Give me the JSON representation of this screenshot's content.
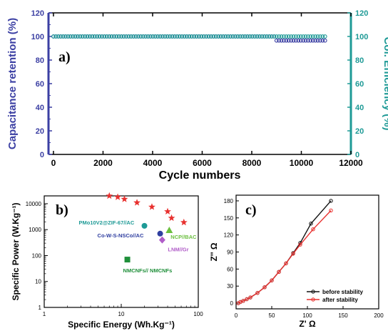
{
  "chart_data": [
    {
      "panel": "a)",
      "type": "scatter",
      "xlabel": "Cycle numbers",
      "ylabel": "Capacitance retention (%)",
      "y2label": "Col. Efficiency (%)",
      "xlim": [
        -200,
        12000
      ],
      "ylim": [
        0,
        120
      ],
      "y2lim": [
        0,
        120
      ],
      "xticks": [
        0,
        2000,
        4000,
        6000,
        8000,
        10000,
        12000
      ],
      "yticks": [
        0,
        20,
        40,
        60,
        80,
        100,
        120
      ],
      "y2ticks": [
        0,
        20,
        40,
        60,
        80,
        100,
        120
      ],
      "series": [
        {
          "axis": "left",
          "color": "#3b3fa3",
          "marker": "circle",
          "segments": [
            {
              "x_start": 0,
              "x_end": 9000,
              "y": 100
            },
            {
              "x_start": 9000,
              "x_end": 11000,
              "y": 96.5
            }
          ]
        },
        {
          "axis": "right",
          "color": "#1e9a96",
          "marker": "circle",
          "segments": [
            {
              "x_start": 0,
              "x_end": 11000,
              "y": 100
            }
          ]
        }
      ]
    },
    {
      "panel": "b)",
      "type": "scatter",
      "xscale": "log",
      "yscale": "log",
      "xlabel": "Specific Energy (Wh.Kg⁻¹)",
      "ylabel": "Specific Power (W.Kg⁻¹)",
      "xlim": [
        1,
        100
      ],
      "ylim": [
        1,
        20000
      ],
      "xticks": [
        1,
        10,
        100
      ],
      "yticks": [
        1,
        10,
        100,
        1000,
        10000
      ],
      "series": [
        {
          "color": "#e8312f",
          "marker": "star",
          "points": [
            [
              7,
              20000
            ],
            [
              9,
              18000
            ],
            [
              11,
              15000
            ],
            [
              16,
              11000
            ],
            [
              25,
              7500
            ],
            [
              40,
              5000
            ],
            [
              45,
              2800
            ],
            [
              65,
              1900
            ]
          ]
        }
      ],
      "annotations": [
        {
          "text": "PMo10V2@ZIF-67//AC",
          "x": 20,
          "y": 1400,
          "color": "#1e9a96",
          "marker": "circle"
        },
        {
          "text": "Co-W-S-NSCo//AC",
          "x": 32,
          "y": 700,
          "color": "#2f3ea0",
          "marker": "circle"
        },
        {
          "text": "NCP//BAC",
          "x": 42,
          "y": 950,
          "color": "#6bbf3f",
          "marker": "triangle"
        },
        {
          "text": "LNM//Gr",
          "x": 34,
          "y": 400,
          "color": "#b05cc8",
          "marker": "diamond"
        },
        {
          "text": "NMCNFs// NMCNFs",
          "x": 12,
          "y": 70,
          "color": "#1f8f3a",
          "marker": "square"
        }
      ]
    },
    {
      "panel": "c)",
      "type": "line",
      "xlabel": "Z' Ω",
      "ylabel": "Z'' Ω",
      "xlim": [
        0,
        200
      ],
      "ylim": [
        -10,
        190
      ],
      "xticks": [
        0,
        50,
        100,
        150,
        200
      ],
      "yticks": [
        0,
        30,
        60,
        90,
        120,
        150,
        180
      ],
      "legend": "bottom-right",
      "series": [
        {
          "name": "before stability",
          "color": "#111111",
          "points": [
            [
              3,
              0
            ],
            [
              6,
              2
            ],
            [
              10,
              4
            ],
            [
              15,
              7
            ],
            [
              20,
              10
            ],
            [
              30,
              18
            ],
            [
              40,
              28
            ],
            [
              50,
              40
            ],
            [
              60,
              55
            ],
            [
              70,
              70
            ],
            [
              80,
              88
            ],
            [
              90,
              106
            ],
            [
              105,
              140
            ],
            [
              133,
              180
            ]
          ]
        },
        {
          "name": "after stability",
          "color": "#e8312f",
          "points": [
            [
              3,
              0
            ],
            [
              6,
              2
            ],
            [
              10,
              4
            ],
            [
              15,
              7
            ],
            [
              20,
              10
            ],
            [
              30,
              18
            ],
            [
              40,
              28
            ],
            [
              50,
              40
            ],
            [
              60,
              55
            ],
            [
              70,
              70
            ],
            [
              80,
              87
            ],
            [
              90,
              103
            ],
            [
              108,
              130
            ],
            [
              133,
              163
            ]
          ]
        }
      ]
    }
  ]
}
